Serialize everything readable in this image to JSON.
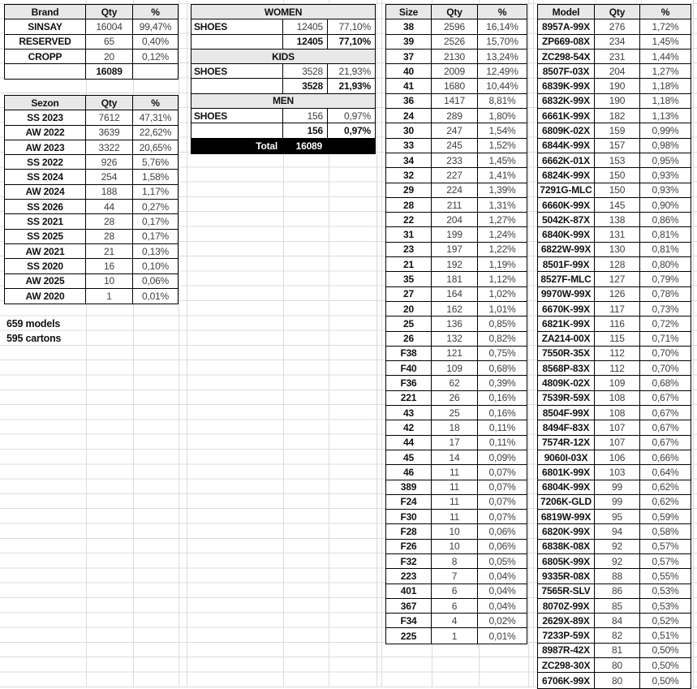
{
  "colors": {
    "header_bg": "#e8e8e8",
    "border": "#000000",
    "value_text": "#3f3f3f",
    "label_text": "#111111",
    "total_bg": "#000000",
    "total_text": "#ffffff",
    "gridline": "#dcdcdc"
  },
  "notes": {
    "models": "659 models",
    "cartons": "595 cartons"
  },
  "tables": {
    "brand": {
      "rows": [
        {
          "t": "h",
          "c": [
            "Brand",
            "Qty",
            "%"
          ]
        },
        {
          "t": "d",
          "c": [
            "SINSAY",
            "16004",
            "99,47%"
          ]
        },
        {
          "t": "d",
          "c": [
            "RESERVED",
            "65",
            "0,40%"
          ]
        },
        {
          "t": "d",
          "c": [
            "CROPP",
            "20",
            "0,12%"
          ]
        },
        {
          "t": "s",
          "c": [
            "",
            "16089",
            ""
          ]
        }
      ]
    },
    "sezon": {
      "rows": [
        {
          "t": "h",
          "c": [
            "Sezon",
            "Qty",
            "%"
          ]
        },
        {
          "t": "d",
          "c": [
            "SS 2023",
            "7612",
            "47,31%"
          ]
        },
        {
          "t": "d",
          "c": [
            "AW 2022",
            "3639",
            "22,62%"
          ]
        },
        {
          "t": "d",
          "c": [
            "AW 2023",
            "3322",
            "20,65%"
          ]
        },
        {
          "t": "d",
          "c": [
            "SS 2022",
            "926",
            "5,76%"
          ]
        },
        {
          "t": "d",
          "c": [
            "SS 2024",
            "254",
            "1,58%"
          ]
        },
        {
          "t": "d",
          "c": [
            "AW 2024",
            "188",
            "1,17%"
          ]
        },
        {
          "t": "d",
          "c": [
            "SS 2026",
            "44",
            "0,27%"
          ]
        },
        {
          "t": "d",
          "c": [
            "SS 2021",
            "28",
            "0,17%"
          ]
        },
        {
          "t": "d",
          "c": [
            "SS 2025",
            "28",
            "0,17%"
          ]
        },
        {
          "t": "d",
          "c": [
            "AW 2021",
            "21",
            "0,13%"
          ]
        },
        {
          "t": "d",
          "c": [
            "SS 2020",
            "16",
            "0,10%"
          ]
        },
        {
          "t": "d",
          "c": [
            "AW 2025",
            "10",
            "0,06%"
          ]
        },
        {
          "t": "d",
          "c": [
            "AW 2020",
            "1",
            "0,01%"
          ]
        }
      ]
    },
    "category": {
      "rows": [
        {
          "t": "h",
          "c": [
            "WOMEN"
          ]
        },
        {
          "t": "d",
          "c": [
            "SHOES",
            "12405",
            "77,10%"
          ]
        },
        {
          "t": "s",
          "c": [
            "",
            "12405",
            "77,10%"
          ]
        },
        {
          "t": "h",
          "c": [
            "KIDS"
          ]
        },
        {
          "t": "d",
          "c": [
            "SHOES",
            "3528",
            "21,93%"
          ]
        },
        {
          "t": "s",
          "c": [
            "",
            "3528",
            "21,93%"
          ]
        },
        {
          "t": "h",
          "c": [
            "MEN"
          ]
        },
        {
          "t": "d",
          "c": [
            "SHOES",
            "156",
            "0,97%"
          ]
        },
        {
          "t": "s",
          "c": [
            "",
            "156",
            "0,97%"
          ]
        },
        {
          "t": "t",
          "c": [
            "Total",
            "16089",
            ""
          ]
        }
      ]
    },
    "size": {
      "rows": [
        {
          "t": "h",
          "c": [
            "Size",
            "Qty",
            "%"
          ]
        },
        {
          "t": "d",
          "c": [
            "38",
            "2596",
            "16,14%"
          ]
        },
        {
          "t": "d",
          "c": [
            "39",
            "2526",
            "15,70%"
          ]
        },
        {
          "t": "d",
          "c": [
            "37",
            "2130",
            "13,24%"
          ]
        },
        {
          "t": "d",
          "c": [
            "40",
            "2009",
            "12,49%"
          ]
        },
        {
          "t": "d",
          "c": [
            "41",
            "1680",
            "10,44%"
          ]
        },
        {
          "t": "d",
          "c": [
            "36",
            "1417",
            "8,81%"
          ]
        },
        {
          "t": "d",
          "c": [
            "24",
            "289",
            "1,80%"
          ]
        },
        {
          "t": "d",
          "c": [
            "30",
            "247",
            "1,54%"
          ]
        },
        {
          "t": "d",
          "c": [
            "33",
            "245",
            "1,52%"
          ]
        },
        {
          "t": "d",
          "c": [
            "34",
            "233",
            "1,45%"
          ]
        },
        {
          "t": "d",
          "c": [
            "32",
            "227",
            "1,41%"
          ]
        },
        {
          "t": "d",
          "c": [
            "29",
            "224",
            "1,39%"
          ]
        },
        {
          "t": "d",
          "c": [
            "28",
            "211",
            "1,31%"
          ]
        },
        {
          "t": "d",
          "c": [
            "22",
            "204",
            "1,27%"
          ]
        },
        {
          "t": "d",
          "c": [
            "31",
            "199",
            "1,24%"
          ]
        },
        {
          "t": "d",
          "c": [
            "23",
            "197",
            "1,22%"
          ]
        },
        {
          "t": "d",
          "c": [
            "21",
            "192",
            "1,19%"
          ]
        },
        {
          "t": "d",
          "c": [
            "35",
            "181",
            "1,12%"
          ]
        },
        {
          "t": "d",
          "c": [
            "27",
            "164",
            "1,02%"
          ]
        },
        {
          "t": "d",
          "c": [
            "20",
            "162",
            "1,01%"
          ]
        },
        {
          "t": "d",
          "c": [
            "25",
            "136",
            "0,85%"
          ]
        },
        {
          "t": "d",
          "c": [
            "26",
            "132",
            "0,82%"
          ]
        },
        {
          "t": "d",
          "c": [
            "F38",
            "121",
            "0,75%"
          ]
        },
        {
          "t": "d",
          "c": [
            "F40",
            "109",
            "0,68%"
          ]
        },
        {
          "t": "d",
          "c": [
            "F36",
            "62",
            "0,39%"
          ]
        },
        {
          "t": "d",
          "c": [
            "221",
            "26",
            "0,16%"
          ]
        },
        {
          "t": "d",
          "c": [
            "43",
            "25",
            "0,16%"
          ]
        },
        {
          "t": "d",
          "c": [
            "42",
            "18",
            "0,11%"
          ]
        },
        {
          "t": "d",
          "c": [
            "44",
            "17",
            "0,11%"
          ]
        },
        {
          "t": "d",
          "c": [
            "45",
            "14",
            "0,09%"
          ]
        },
        {
          "t": "d",
          "c": [
            "46",
            "11",
            "0,07%"
          ]
        },
        {
          "t": "d",
          "c": [
            "389",
            "11",
            "0,07%"
          ]
        },
        {
          "t": "d",
          "c": [
            "F24",
            "11",
            "0,07%"
          ]
        },
        {
          "t": "d",
          "c": [
            "F30",
            "11",
            "0,07%"
          ]
        },
        {
          "t": "d",
          "c": [
            "F28",
            "10",
            "0,06%"
          ]
        },
        {
          "t": "d",
          "c": [
            "F26",
            "10",
            "0,06%"
          ]
        },
        {
          "t": "d",
          "c": [
            "F32",
            "8",
            "0,05%"
          ]
        },
        {
          "t": "d",
          "c": [
            "223",
            "7",
            "0,04%"
          ]
        },
        {
          "t": "d",
          "c": [
            "401",
            "6",
            "0,04%"
          ]
        },
        {
          "t": "d",
          "c": [
            "367",
            "6",
            "0,04%"
          ]
        },
        {
          "t": "d",
          "c": [
            "F34",
            "4",
            "0,02%"
          ]
        },
        {
          "t": "d",
          "c": [
            "225",
            "1",
            "0,01%"
          ]
        }
      ]
    },
    "model": {
      "rows": [
        {
          "t": "h",
          "c": [
            "Model",
            "Qty",
            "%"
          ]
        },
        {
          "t": "d",
          "c": [
            "8957A-99X",
            "276",
            "1,72%"
          ]
        },
        {
          "t": "d",
          "c": [
            "ZP669-08X",
            "234",
            "1,45%"
          ]
        },
        {
          "t": "d",
          "c": [
            "ZC298-54X",
            "231",
            "1,44%"
          ]
        },
        {
          "t": "d",
          "c": [
            "8507F-03X",
            "204",
            "1,27%"
          ]
        },
        {
          "t": "d",
          "c": [
            "6839K-99X",
            "190",
            "1,18%"
          ]
        },
        {
          "t": "d",
          "c": [
            "6832K-99X",
            "190",
            "1,18%"
          ]
        },
        {
          "t": "d",
          "c": [
            "6661K-99X",
            "182",
            "1,13%"
          ]
        },
        {
          "t": "d",
          "c": [
            "6809K-02X",
            "159",
            "0,99%"
          ]
        },
        {
          "t": "d",
          "c": [
            "6844K-99X",
            "157",
            "0,98%"
          ]
        },
        {
          "t": "d",
          "c": [
            "6662K-01X",
            "153",
            "0,95%"
          ]
        },
        {
          "t": "d",
          "c": [
            "6824K-99X",
            "150",
            "0,93%"
          ]
        },
        {
          "t": "d",
          "c": [
            "7291G-MLC",
            "150",
            "0,93%"
          ]
        },
        {
          "t": "d",
          "c": [
            "6660K-99X",
            "145",
            "0,90%"
          ]
        },
        {
          "t": "d",
          "c": [
            "5042K-87X",
            "138",
            "0,86%"
          ]
        },
        {
          "t": "d",
          "c": [
            "6840K-99X",
            "131",
            "0,81%"
          ]
        },
        {
          "t": "d",
          "c": [
            "6822W-99X",
            "130",
            "0,81%"
          ]
        },
        {
          "t": "d",
          "c": [
            "8501F-99X",
            "128",
            "0,80%"
          ]
        },
        {
          "t": "d",
          "c": [
            "8527F-MLC",
            "127",
            "0,79%"
          ]
        },
        {
          "t": "d",
          "c": [
            "9970W-99X",
            "126",
            "0,78%"
          ]
        },
        {
          "t": "d",
          "c": [
            "6670K-99X",
            "117",
            "0,73%"
          ]
        },
        {
          "t": "d",
          "c": [
            "6821K-99X",
            "116",
            "0,72%"
          ]
        },
        {
          "t": "d",
          "c": [
            "ZA214-00X",
            "115",
            "0,71%"
          ]
        },
        {
          "t": "d",
          "c": [
            "7550R-35X",
            "112",
            "0,70%"
          ]
        },
        {
          "t": "d",
          "c": [
            "8568P-83X",
            "112",
            "0,70%"
          ]
        },
        {
          "t": "d",
          "c": [
            "4809K-02X",
            "109",
            "0,68%"
          ]
        },
        {
          "t": "d",
          "c": [
            "7539R-59X",
            "108",
            "0,67%"
          ]
        },
        {
          "t": "d",
          "c": [
            "8504F-99X",
            "108",
            "0,67%"
          ]
        },
        {
          "t": "d",
          "c": [
            "8494F-83X",
            "107",
            "0,67%"
          ]
        },
        {
          "t": "d",
          "c": [
            "7574R-12X",
            "107",
            "0,67%"
          ]
        },
        {
          "t": "d",
          "c": [
            "9060I-03X",
            "106",
            "0,66%"
          ]
        },
        {
          "t": "d",
          "c": [
            "6801K-99X",
            "103",
            "0,64%"
          ]
        },
        {
          "t": "d",
          "c": [
            "6804K-99X",
            "99",
            "0,62%"
          ]
        },
        {
          "t": "d",
          "c": [
            "7206K-GLD",
            "99",
            "0,62%"
          ]
        },
        {
          "t": "d",
          "c": [
            "6819W-99X",
            "95",
            "0,59%"
          ]
        },
        {
          "t": "d",
          "c": [
            "6820K-99X",
            "94",
            "0,58%"
          ]
        },
        {
          "t": "d",
          "c": [
            "6838K-08X",
            "92",
            "0,57%"
          ]
        },
        {
          "t": "d",
          "c": [
            "6805K-99X",
            "92",
            "0,57%"
          ]
        },
        {
          "t": "d",
          "c": [
            "9335R-08X",
            "88",
            "0,55%"
          ]
        },
        {
          "t": "d",
          "c": [
            "7565R-SLV",
            "86",
            "0,53%"
          ]
        },
        {
          "t": "d",
          "c": [
            "8070Z-99X",
            "85",
            "0,53%"
          ]
        },
        {
          "t": "d",
          "c": [
            "2629X-89X",
            "84",
            "0,52%"
          ]
        },
        {
          "t": "d",
          "c": [
            "7233P-59X",
            "82",
            "0,51%"
          ]
        },
        {
          "t": "d",
          "c": [
            "8987R-42X",
            "81",
            "0,50%"
          ]
        },
        {
          "t": "d",
          "c": [
            "ZC298-30X",
            "80",
            "0,50%"
          ]
        },
        {
          "t": "d",
          "c": [
            "6706K-99X",
            "80",
            "0,50%"
          ]
        }
      ]
    }
  }
}
